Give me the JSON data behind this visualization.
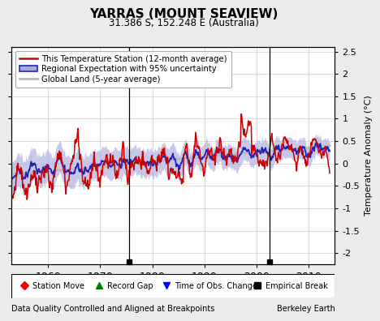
{
  "title": "YARRAS (MOUNT SEAVIEW)",
  "subtitle": "31.386 S, 152.248 E (Australia)",
  "ylabel": "Temperature Anomaly (°C)",
  "footer_left": "Data Quality Controlled and Aligned at Breakpoints",
  "footer_right": "Berkeley Earth",
  "ylim": [
    -2.25,
    2.6
  ],
  "yticks": [
    -2,
    -1.5,
    -1,
    -0.5,
    0,
    0.5,
    1,
    1.5,
    2,
    2.5
  ],
  "year_start": 1953,
  "year_end": 2014,
  "xlim": [
    1953,
    2015
  ],
  "xticks": [
    1960,
    1970,
    1980,
    1990,
    2000,
    2010
  ],
  "empirical_breaks": [
    1975.5,
    2002.5
  ],
  "legend_labels": [
    "This Temperature Station (12-month average)",
    "Regional Expectation with 95% uncertainty",
    "Global Land (5-year average)"
  ],
  "colors": {
    "station": "#cc0000",
    "regional": "#2222bb",
    "regional_fill": "#aaaadd",
    "global": "#bbbbbb",
    "background": "#ebebeb",
    "plot_bg": "#ffffff",
    "grid": "#cccccc"
  }
}
